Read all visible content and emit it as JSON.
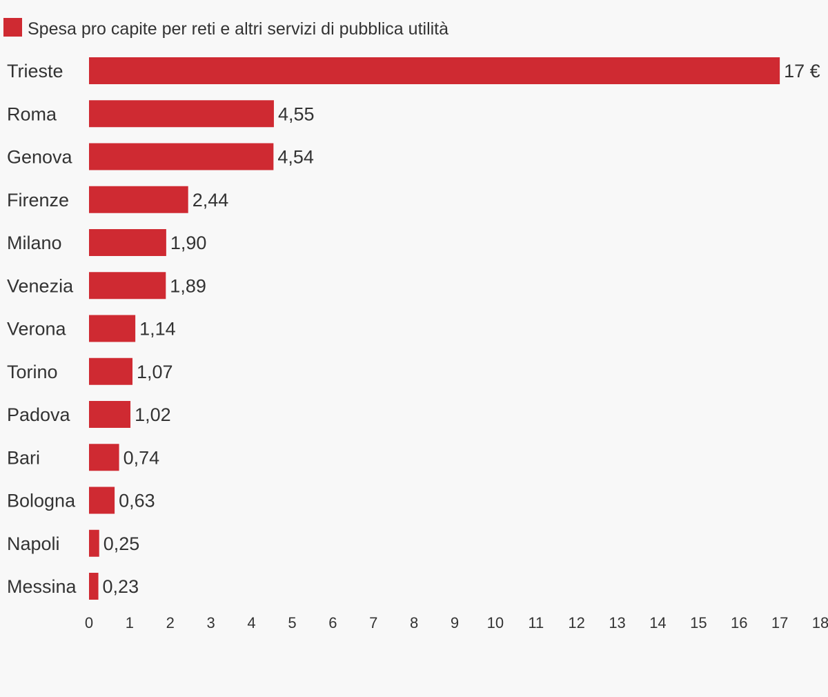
{
  "colors": {
    "bar": "#cf2a32",
    "text": "#333333",
    "background": "#f8f8f8"
  },
  "chart_data": {
    "type": "bar",
    "orientation": "horizontal",
    "legend_position": "top-left",
    "grid": false,
    "categories": [
      "Trieste",
      "Roma",
      "Genova",
      "Firenze",
      "Milano",
      "Venezia",
      "Verona",
      "Torino",
      "Padova",
      "Bari",
      "Bologna",
      "Napoli",
      "Messina"
    ],
    "series": [
      {
        "name": "Spesa pro capite per reti e altri servizi di pubblica utilità",
        "values": [
          17,
          4.55,
          4.54,
          2.44,
          1.9,
          1.89,
          1.14,
          1.07,
          1.02,
          0.74,
          0.63,
          0.25,
          0.23
        ],
        "value_labels": [
          "17 €",
          "4,55",
          "4,54",
          "2,44",
          "1,90",
          "1,89",
          "1,14",
          "1,07",
          "1,02",
          "0,74",
          "0,63",
          "0,25",
          "0,23"
        ]
      }
    ],
    "xlim": [
      0,
      18
    ],
    "xticks": [
      0,
      1,
      2,
      3,
      4,
      5,
      6,
      7,
      8,
      9,
      10,
      11,
      12,
      13,
      14,
      15,
      16,
      17,
      18
    ]
  }
}
